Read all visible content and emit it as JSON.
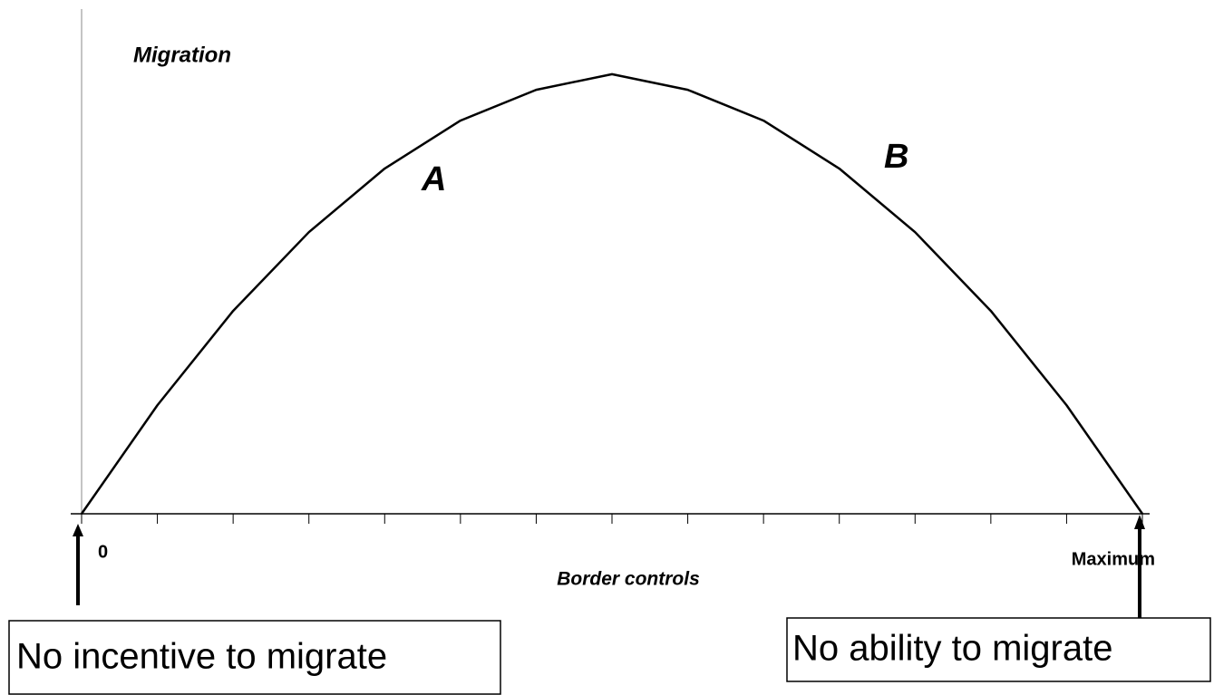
{
  "chart_data": {
    "type": "line",
    "y_label": "Migration",
    "x_label": "Border controls",
    "categories": [
      "0",
      null,
      null,
      null,
      null,
      null,
      null,
      null,
      null,
      null,
      null,
      null,
      null,
      null,
      "Maximum"
    ],
    "series": [
      {
        "color": "#000000",
        "values": [
          0,
          21.5,
          40.2,
          55.8,
          68.4,
          77.9,
          84,
          87.1,
          84,
          77.9,
          68.4,
          55.8,
          40.2,
          21.5,
          0
        ]
      }
    ],
    "ylim": [
      0,
      100
    ],
    "annotations": [
      "A",
      "B"
    ],
    "notes": [
      "No incentive to migrate",
      "No ability to migrate"
    ]
  }
}
